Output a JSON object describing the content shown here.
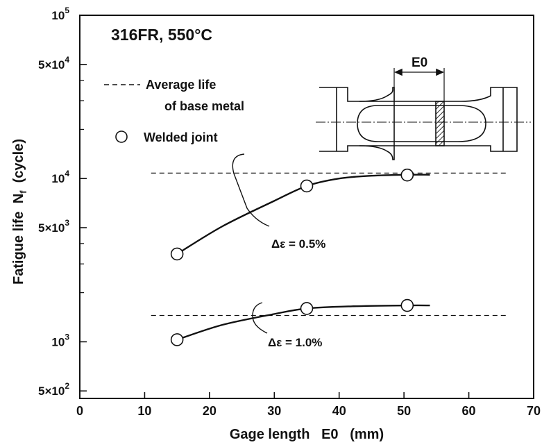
{
  "chart_data": {
    "type": "scatter",
    "title": "316FR,  550°C",
    "xlabel": "Gage length   E0   (mm)",
    "ylabel_main": "Fatigue life  ",
    "ylabel_sym": "N",
    "ylabel_sub": "f",
    "ylabel_unit": "  (cycle)",
    "xlim": [
      0,
      70
    ],
    "ylim": [
      450,
      100000
    ],
    "yscale": "log",
    "x_ticks": [
      {
        "value": 0,
        "label": "0"
      },
      {
        "value": 10,
        "label": "10"
      },
      {
        "value": 20,
        "label": "20"
      },
      {
        "value": 30,
        "label": "30"
      },
      {
        "value": 40,
        "label": "40"
      },
      {
        "value": 50,
        "label": "50"
      },
      {
        "value": 60,
        "label": "60"
      },
      {
        "value": 70,
        "label": "70"
      }
    ],
    "y_ticks_labeled": [
      {
        "value": 500,
        "mant": "5×10",
        "exp": "2"
      },
      {
        "value": 1000,
        "mant": "10",
        "exp": "3"
      },
      {
        "value": 5000,
        "mant": "5×10",
        "exp": "3"
      },
      {
        "value": 10000,
        "mant": "10",
        "exp": "4"
      },
      {
        "value": 50000,
        "mant": "5×10",
        "exp": "4"
      },
      {
        "value": 100000,
        "mant": "10",
        "exp": "5"
      }
    ],
    "y_ticks_minor": [
      2000,
      3000,
      4000,
      20000,
      30000,
      40000
    ],
    "series": [
      {
        "name": "Welded joint",
        "strain_label": "Δε = 0.5%",
        "points": [
          {
            "x": 15,
            "y": 3450
          },
          {
            "x": 35,
            "y": 9000
          },
          {
            "x": 50.5,
            "y": 10500
          }
        ],
        "curve": [
          {
            "x": 15,
            "y": 3450
          },
          {
            "x": 22,
            "y": 5100
          },
          {
            "x": 30,
            "y": 7300
          },
          {
            "x": 35,
            "y": 9000
          },
          {
            "x": 40,
            "y": 10000
          },
          {
            "x": 45,
            "y": 10400
          },
          {
            "x": 50.5,
            "y": 10550
          },
          {
            "x": 54,
            "y": 10550
          }
        ],
        "base_metal_avg": 10800
      },
      {
        "name": "Welded joint",
        "strain_label": "Δε = 1.0%",
        "points": [
          {
            "x": 15,
            "y": 1030
          },
          {
            "x": 35,
            "y": 1600
          },
          {
            "x": 50.5,
            "y": 1670
          }
        ],
        "curve": [
          {
            "x": 15,
            "y": 1030
          },
          {
            "x": 22,
            "y": 1270
          },
          {
            "x": 30,
            "y": 1480
          },
          {
            "x": 35,
            "y": 1600
          },
          {
            "x": 42,
            "y": 1650
          },
          {
            "x": 50.5,
            "y": 1670
          },
          {
            "x": 54,
            "y": 1670
          }
        ],
        "base_metal_avg": 1450
      }
    ],
    "legend": {
      "placement": "top-left",
      "dashed_label_line1": "Average life",
      "dashed_label_line2": "of base metal",
      "marker_label": "Welded joint"
    },
    "specimen_label": "E0",
    "grid": false
  }
}
